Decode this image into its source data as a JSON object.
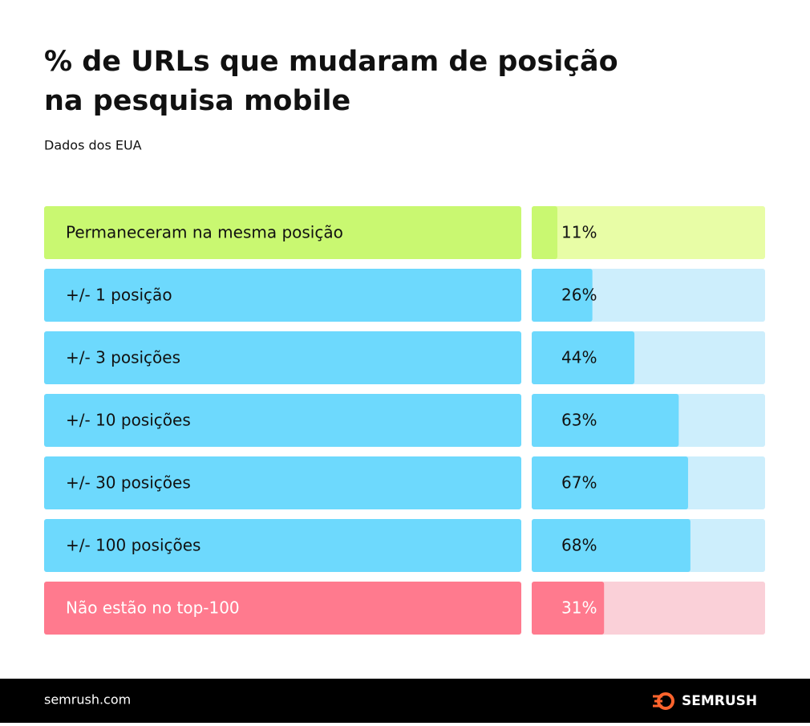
{
  "chart_data": {
    "type": "bar",
    "title": [
      "% de URLs que mudaram de posição",
      "na pesquisa mobile"
    ],
    "subtitle": "Dados dos EUA",
    "categories": [
      "Permaneceram na mesma posição",
      "+/- 1 posição",
      "+/- 3 posições",
      "+/- 10 posições",
      "+/- 30 posições",
      "+/- 100 posições",
      "Não estão no top-100"
    ],
    "values": [
      11,
      26,
      44,
      63,
      67,
      68,
      31
    ],
    "value_labels": [
      "11%",
      "26%",
      "44%",
      "63%",
      "67%",
      "68%",
      "31%"
    ],
    "colors": [
      "#c9f871",
      "#6dd9fd",
      "#6dd9fd",
      "#6dd9fd",
      "#6dd9fd",
      "#6dd9fd",
      "#ff7a8e"
    ],
    "track_colors": [
      "#e8fda6",
      "#cdeefc",
      "#cdeefc",
      "#cdeefc",
      "#cdeefc",
      "#cdeefc",
      "#fad0d8"
    ],
    "text_colors": [
      "#111111",
      "#111111",
      "#111111",
      "#111111",
      "#111111",
      "#111111",
      "#ffffff"
    ],
    "xlim": [
      0,
      100
    ]
  },
  "footer": {
    "site": "semrush.com",
    "brand": "SEMRUSH"
  }
}
